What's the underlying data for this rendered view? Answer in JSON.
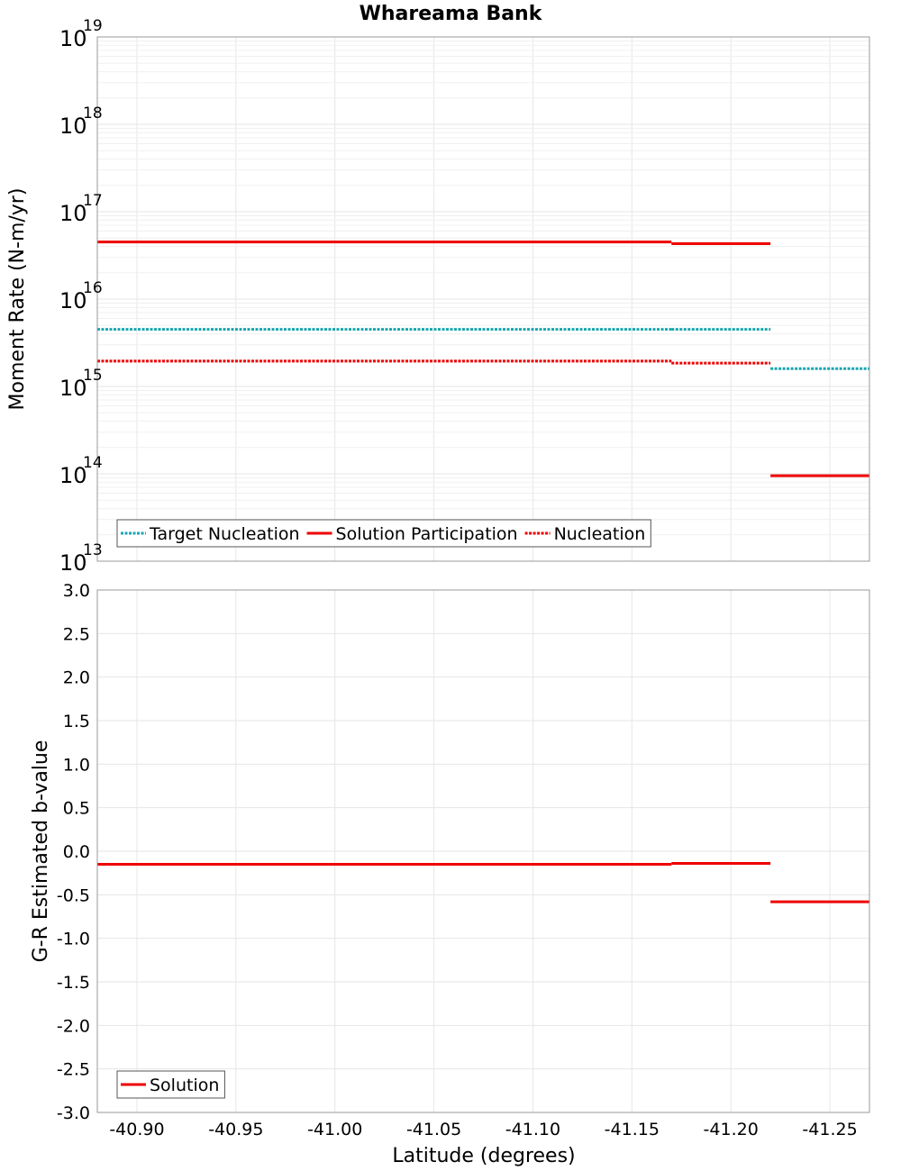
{
  "chart_data": [
    {
      "type": "line",
      "title": "Whareama Bank",
      "xlabel": "Latitude (degrees)",
      "ylabel": "Moment Rate (N-m/yr)",
      "yscale": "log",
      "ylim": [
        10000000000000.0,
        1e+19
      ],
      "xlim": [
        -40.88,
        -41.27
      ],
      "x_ticks": [
        "-40.90",
        "-40.95",
        "-41.00",
        "-41.05",
        "-41.10",
        "-41.15",
        "-41.20",
        "-41.25"
      ],
      "y_tick_labels": [
        {
          "base": "10",
          "exp": "13"
        },
        {
          "base": "10",
          "exp": "14"
        },
        {
          "base": "10",
          "exp": "15"
        },
        {
          "base": "10",
          "exp": "16"
        },
        {
          "base": "10",
          "exp": "17"
        },
        {
          "base": "10",
          "exp": "18"
        },
        {
          "base": "10",
          "exp": "19"
        }
      ],
      "legend": {
        "position": "bottom-left",
        "entries": [
          "Target Nucleation",
          "Solution Participation",
          "Nucleation"
        ]
      },
      "series": [
        {
          "name": "Target Nucleation",
          "style": "dotted",
          "color": "#1aa6b0",
          "segments": [
            {
              "x0": -40.88,
              "x1": -41.17,
              "y": 4500000000000000.0
            },
            {
              "x0": -41.17,
              "x1": -41.22,
              "y": 4500000000000000.0
            },
            {
              "x0": -41.22,
              "x1": -41.27,
              "y": 1600000000000000.0
            }
          ]
        },
        {
          "name": "Solution Participation",
          "style": "solid",
          "color": "#ee0000",
          "segments": [
            {
              "x0": -40.88,
              "x1": -41.17,
              "y": 4.5e+16
            },
            {
              "x0": -41.17,
              "x1": -41.22,
              "y": 4.3e+16
            },
            {
              "x0": -41.22,
              "x1": -41.27,
              "y": 95000000000000.0
            }
          ]
        },
        {
          "name": "Nucleation",
          "style": "dotted",
          "color": "#ee0000",
          "segments": [
            {
              "x0": -40.88,
              "x1": -41.17,
              "y": 1950000000000000.0
            },
            {
              "x0": -41.17,
              "x1": -41.22,
              "y": 1850000000000000.0
            }
          ]
        }
      ]
    },
    {
      "type": "line",
      "title": "",
      "xlabel": "Latitude (degrees)",
      "ylabel": "G-R Estimated b-value",
      "ylim": [
        -3.0,
        3.0
      ],
      "xlim": [
        -40.88,
        -41.27
      ],
      "x_ticks": [
        "-40.90",
        "-40.95",
        "-41.00",
        "-41.05",
        "-41.10",
        "-41.15",
        "-41.20",
        "-41.25"
      ],
      "y_ticks": [
        "3.0",
        "2.5",
        "2.0",
        "1.5",
        "1.0",
        "0.5",
        "0.0",
        "-0.5",
        "-1.0",
        "-1.5",
        "-2.0",
        "-2.5",
        "-3.0"
      ],
      "legend": {
        "position": "bottom-left",
        "entries": [
          "Solution"
        ]
      },
      "series": [
        {
          "name": "Solution",
          "style": "solid",
          "color": "#ee0000",
          "segments": [
            {
              "x0": -40.88,
              "x1": -41.17,
              "y": -0.15
            },
            {
              "x0": -41.17,
              "x1": -41.22,
              "y": -0.14
            },
            {
              "x0": -41.22,
              "x1": -41.27,
              "y": -0.58
            }
          ]
        }
      ]
    }
  ]
}
